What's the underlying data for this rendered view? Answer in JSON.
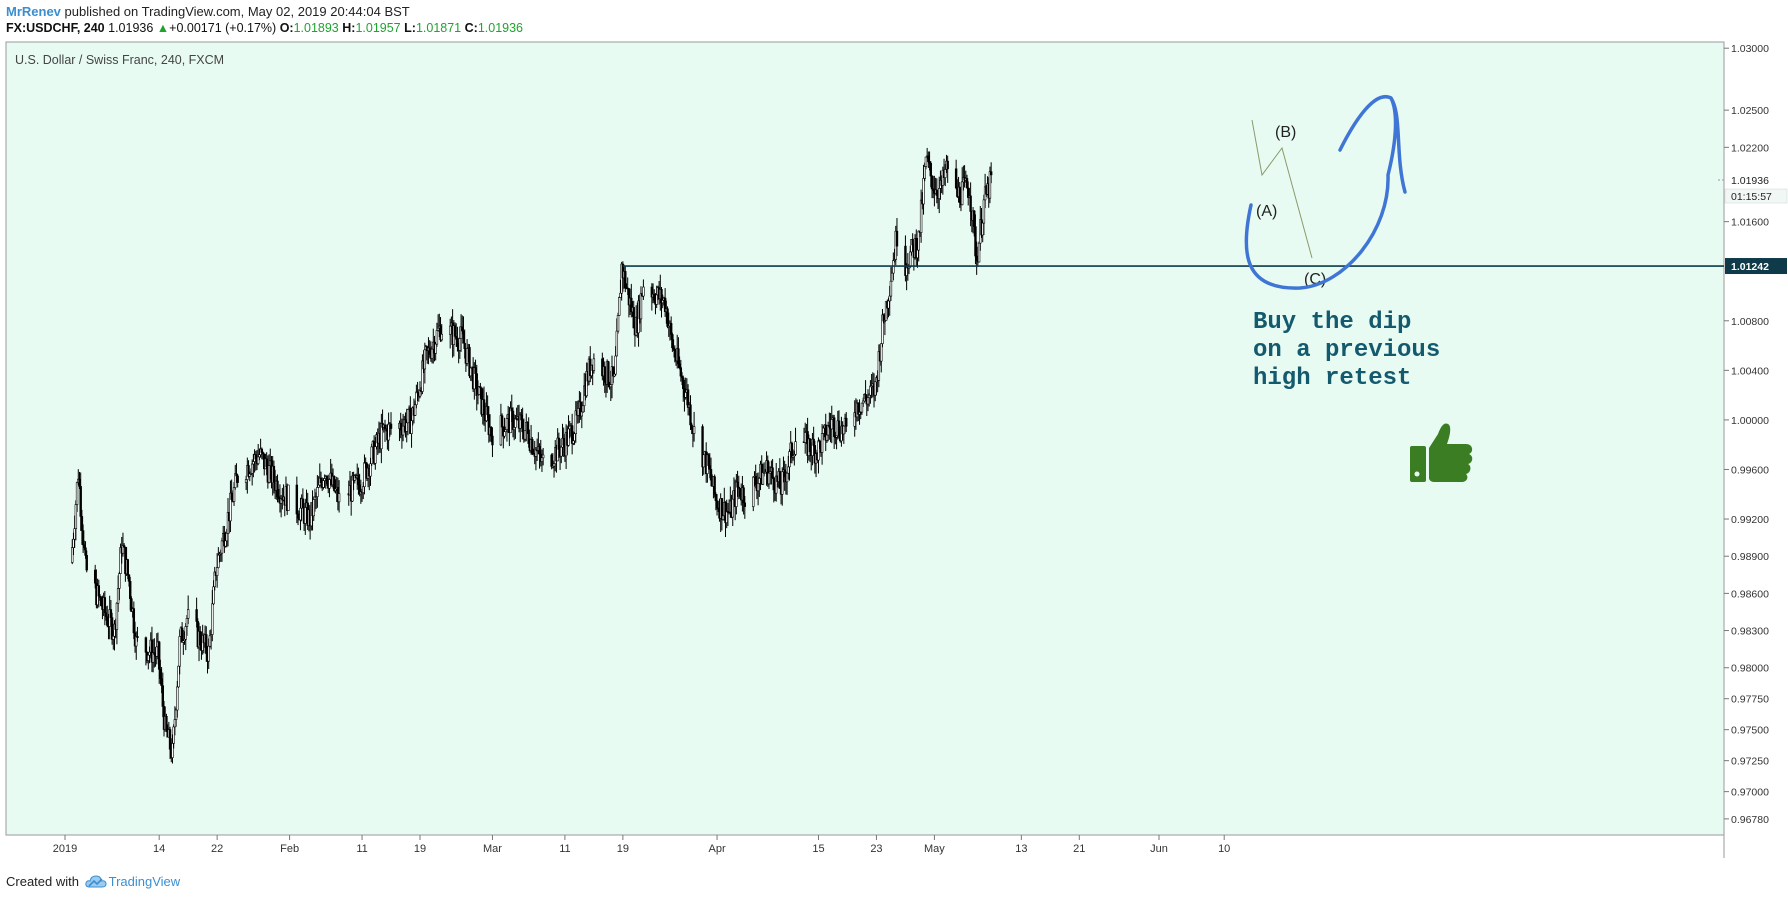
{
  "header": {
    "author": "MrRenev",
    "published": " published on TradingView.com, May 02, 2019 20:44:04 BST",
    "symbol": "FX:USDCHF, 240",
    "last": "1.01936",
    "change": "+0.00171 (+0.17%)",
    "open_label": "O:",
    "open": "1.01893",
    "high_label": "H:",
    "high": "1.01957",
    "low_label": "L:",
    "low": "1.01871",
    "close_label": "C:",
    "close": "1.01936"
  },
  "footer": {
    "created_with": "Created with",
    "brand": "TradingView"
  },
  "colors": {
    "plot_bg": "#e8fbf3",
    "candles": "#000000",
    "support_line": "#0e3a4a",
    "drawing": "#3f76d6",
    "annotation_text": "#145a6e",
    "thumb": "#3b7d23",
    "price_green": "#1fa32f"
  },
  "chart_data": {
    "type": "candlestick",
    "title": "U.S. Dollar / Swiss Franc, 240, FXCM",
    "ylim": [
      0.9665,
      1.0305
    ],
    "y_ticks": [
      "1.03000",
      "1.02500",
      "1.02200",
      "1.01600",
      "1.00800",
      "1.00400",
      "1.00000",
      "0.99600",
      "0.99200",
      "0.98900",
      "0.98600",
      "0.98300",
      "0.98000",
      "0.97750",
      "0.97500",
      "0.97250",
      "0.97000",
      "0.96780"
    ],
    "x_ticks": [
      "2019",
      "14",
      "22",
      "Feb",
      "11",
      "19",
      "Mar",
      "11",
      "19",
      "Apr",
      "15",
      "23",
      "May",
      "13",
      "21",
      "Jun",
      "10"
    ],
    "price_path": [
      {
        "date": "2019-01-02",
        "price": 0.9885
      },
      {
        "date": "2019-01-03",
        "price": 0.9958
      },
      {
        "date": "2019-01-04",
        "price": 0.988
      },
      {
        "date": "2019-01-07",
        "price": 0.984
      },
      {
        "date": "2019-01-08",
        "price": 0.983
      },
      {
        "date": "2019-01-09",
        "price": 0.99
      },
      {
        "date": "2019-01-10",
        "price": 0.987
      },
      {
        "date": "2019-01-11",
        "price": 0.982
      },
      {
        "date": "2019-01-14",
        "price": 0.981
      },
      {
        "date": "2019-01-15",
        "price": 0.975
      },
      {
        "date": "2019-01-16",
        "price": 0.973
      },
      {
        "date": "2019-01-17",
        "price": 0.982
      },
      {
        "date": "2019-01-18",
        "price": 0.984
      },
      {
        "date": "2019-01-21",
        "price": 0.9812
      },
      {
        "date": "2019-01-22",
        "price": 0.988
      },
      {
        "date": "2019-01-24",
        "price": 0.993
      },
      {
        "date": "2019-01-25",
        "price": 0.9955
      },
      {
        "date": "2019-01-28",
        "price": 0.9972
      },
      {
        "date": "2019-01-31",
        "price": 0.9942
      },
      {
        "date": "2019-02-04",
        "price": 0.992
      },
      {
        "date": "2019-02-06",
        "price": 0.996
      },
      {
        "date": "2019-02-08",
        "price": 0.9935
      },
      {
        "date": "2019-02-11",
        "price": 0.995
      },
      {
        "date": "2019-02-14",
        "price": 0.999
      },
      {
        "date": "2019-02-18",
        "price": 1.0
      },
      {
        "date": "2019-02-20",
        "price": 1.005
      },
      {
        "date": "2019-02-22",
        "price": 1.0075
      },
      {
        "date": "2019-02-25",
        "price": 1.0065
      },
      {
        "date": "2019-02-27",
        "price": 1.0025
      },
      {
        "date": "2019-03-01",
        "price": 0.999
      },
      {
        "date": "2019-03-04",
        "price": 1.0
      },
      {
        "date": "2019-03-06",
        "price": 0.999
      },
      {
        "date": "2019-03-08",
        "price": 0.9965
      },
      {
        "date": "2019-03-11",
        "price": 0.998
      },
      {
        "date": "2019-03-13",
        "price": 1.0
      },
      {
        "date": "2019-03-14",
        "price": 1.003
      },
      {
        "date": "2019-03-15",
        "price": 1.005
      },
      {
        "date": "2019-03-18",
        "price": 1.003
      },
      {
        "date": "2019-03-19",
        "price": 1.0124
      },
      {
        "date": "2019-03-20",
        "price": 1.0098
      },
      {
        "date": "2019-03-21",
        "price": 1.0075
      },
      {
        "date": "2019-03-22",
        "price": 1.011
      },
      {
        "date": "2019-03-25",
        "price": 1.0095
      },
      {
        "date": "2019-03-26",
        "price": 1.006
      },
      {
        "date": "2019-03-27",
        "price": 1.004
      },
      {
        "date": "2019-03-28",
        "price": 1.002
      },
      {
        "date": "2019-03-29",
        "price": 0.999
      },
      {
        "date": "2019-03-31",
        "price": 0.996
      },
      {
        "date": "2019-04-01",
        "price": 0.9935
      },
      {
        "date": "2019-04-02",
        "price": 0.9928
      },
      {
        "date": "2019-04-03",
        "price": 0.9925
      },
      {
        "date": "2019-04-04",
        "price": 0.9945
      },
      {
        "date": "2019-04-05",
        "price": 0.994
      },
      {
        "date": "2019-04-08",
        "price": 0.996
      },
      {
        "date": "2019-04-10",
        "price": 0.9945
      },
      {
        "date": "2019-04-12",
        "price": 0.9985
      },
      {
        "date": "2019-04-15",
        "price": 0.9975
      },
      {
        "date": "2019-04-17",
        "price": 0.9998
      },
      {
        "date": "2019-04-19",
        "price": 0.999
      },
      {
        "date": "2019-04-20",
        "price": 1.001
      },
      {
        "date": "2019-04-22",
        "price": 1.0018
      },
      {
        "date": "2019-04-23",
        "price": 1.0025
      },
      {
        "date": "2019-04-24",
        "price": 1.0075
      },
      {
        "date": "2019-04-25",
        "price": 1.011
      },
      {
        "date": "2019-04-26",
        "price": 1.015
      },
      {
        "date": "2019-04-27",
        "price": 1.0125
      },
      {
        "date": "2019-04-29",
        "price": 1.0145
      },
      {
        "date": "2019-04-30",
        "price": 1.021
      },
      {
        "date": "2019-05-01",
        "price": 1.019
      },
      {
        "date": "2019-05-02",
        "price": 1.0185
      },
      {
        "date": "2019-05-03",
        "price": 1.0205
      },
      {
        "date": "2019-05-04",
        "price": 1.018
      },
      {
        "date": "2019-05-05",
        "price": 1.0185
      },
      {
        "date": "2019-05-06",
        "price": 1.0188
      },
      {
        "date": "2019-05-07",
        "price": 1.013
      },
      {
        "date": "2019-05-08",
        "price": 1.0175
      },
      {
        "date": "2019-05-09",
        "price": 1.0193
      }
    ],
    "horizontal_line": {
      "value": 1.01242,
      "label": "1.01242"
    },
    "last_price_label": "1.01936",
    "countdown_label": "01:15:57",
    "annotations": {
      "wave_a": "(A)",
      "wave_b": "(B)",
      "wave_c": "(C)",
      "note_lines": [
        "Buy the dip",
        "on a previous",
        "high retest"
      ]
    }
  }
}
